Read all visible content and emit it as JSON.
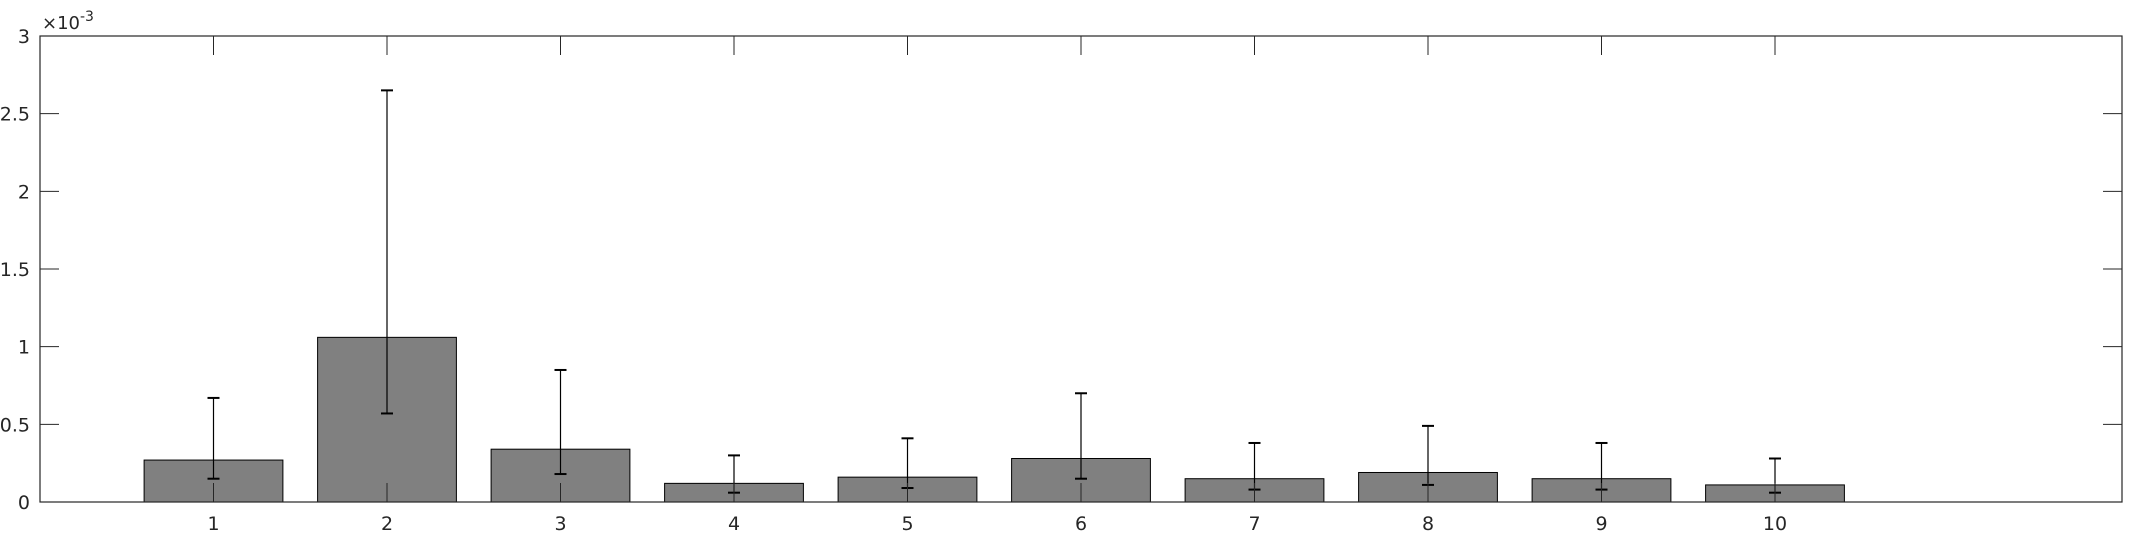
{
  "chart_data": {
    "type": "bar",
    "title": "",
    "xlabel": "",
    "ylabel": "",
    "y_exponent_label": "×10",
    "y_exponent_power": "-3",
    "categories": [
      "1",
      "2",
      "3",
      "4",
      "5",
      "6",
      "7",
      "8",
      "9",
      "10"
    ],
    "values": [
      0.27,
      1.06,
      0.34,
      0.12,
      0.16,
      0.28,
      0.15,
      0.19,
      0.15,
      0.11
    ],
    "error_lower": [
      0.15,
      0.57,
      0.18,
      0.06,
      0.09,
      0.15,
      0.08,
      0.11,
      0.08,
      0.06
    ],
    "error_upper": [
      0.67,
      2.65,
      0.85,
      0.3,
      0.41,
      0.7,
      0.38,
      0.49,
      0.38,
      0.28
    ],
    "xlim": [
      0,
      12
    ],
    "ylim": [
      0,
      3
    ],
    "y_ticks": [
      0,
      0.5,
      1,
      1.5,
      2,
      2.5,
      3
    ],
    "y_tick_labels": [
      "0",
      "0.5",
      "1",
      "1.5",
      "2",
      "2.5",
      "3"
    ],
    "grid": false,
    "bar_color": "#808080",
    "edge_color": "#000000"
  }
}
